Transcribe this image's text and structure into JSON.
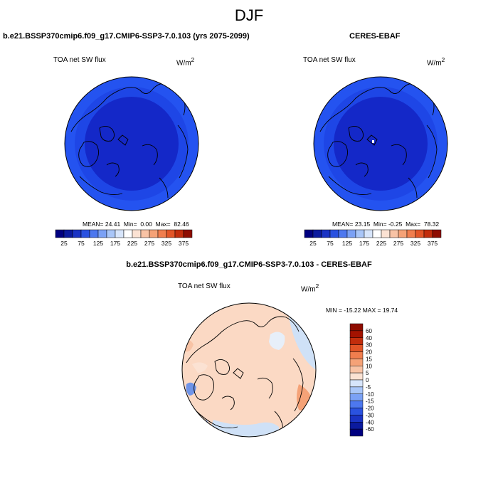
{
  "page_title": "DJF",
  "colors": {
    "deep_blue": "#1428c8",
    "mid_blue": "#1e46e6",
    "outer_blue": "#2453f0",
    "diff_bg": "#fbd9c4",
    "diff_neg": "#cfe1f7"
  },
  "chart_data": [
    {
      "type": "heatmap",
      "projection": "north-polar-stereographic",
      "title": "b.e21.BSSP370cmip6.f09_g17.CMIP6-SSP3-7.0.103 (yrs 2075-2099)",
      "variable": "TOA net SW flux",
      "units_base": "W/m",
      "units_exp": "2",
      "stats": {
        "mean_label": "MEAN=",
        "mean": "24.41",
        "min_label": "Min=",
        "min": "0.00",
        "max_label": "Max=",
        "max": "82.46"
      },
      "colorbar": {
        "colors": [
          "#000080",
          "#0b1a9e",
          "#1a33c4",
          "#2a52e0",
          "#4d78ef",
          "#7ba1f5",
          "#a9c6f8",
          "#d7e5fb",
          "#ffffff",
          "#fbe2d3",
          "#f8c3a5",
          "#f5a277",
          "#f07e4e",
          "#e25527",
          "#c22d0c",
          "#8e0c00"
        ],
        "tick_labels": [
          "25",
          "75",
          "125",
          "175",
          "225",
          "275",
          "325",
          "375"
        ]
      }
    },
    {
      "type": "heatmap",
      "projection": "north-polar-stereographic",
      "title": "CERES-EBAF",
      "variable": "TOA net SW flux",
      "units_base": "W/m",
      "units_exp": "2",
      "stats": {
        "mean_label": "MEAN=",
        "mean": "23.15",
        "min_label": "Min=",
        "min": "-0.25",
        "max_label": "Max=",
        "max": "78.32"
      },
      "colorbar": {
        "colors": [
          "#000080",
          "#0b1a9e",
          "#1a33c4",
          "#2a52e0",
          "#4d78ef",
          "#7ba1f5",
          "#a9c6f8",
          "#d7e5fb",
          "#ffffff",
          "#fbe2d3",
          "#f8c3a5",
          "#f5a277",
          "#f07e4e",
          "#e25527",
          "#c22d0c",
          "#8e0c00"
        ],
        "tick_labels": [
          "25",
          "75",
          "125",
          "175",
          "225",
          "275",
          "325",
          "375"
        ]
      }
    },
    {
      "type": "heatmap",
      "projection": "north-polar-stereographic",
      "title": "b.e21.BSSP370cmip6.f09_g17.CMIP6-SSP3-7.0.103 - CERES-EBAF",
      "variable": "TOA net SW flux",
      "units_base": "W/m",
      "units_exp": "2",
      "stats_text": "MIN = -15.22 MAX = 19.74",
      "colorbar": {
        "colors": [
          "#000080",
          "#0b1a9e",
          "#1a33c4",
          "#2a52e0",
          "#4d78ef",
          "#7ba1f5",
          "#a9c6f8",
          "#d7e5fb",
          "#fbe2d3",
          "#f8c3a5",
          "#f5a277",
          "#f07e4e",
          "#e25527",
          "#c22d0c",
          "#a31200",
          "#8e0c00"
        ],
        "tick_labels": [
          "60",
          "40",
          "30",
          "20",
          "15",
          "10",
          "5",
          "0",
          "-5",
          "-10",
          "-15",
          "-20",
          "-30",
          "-40",
          "-60"
        ]
      }
    }
  ]
}
